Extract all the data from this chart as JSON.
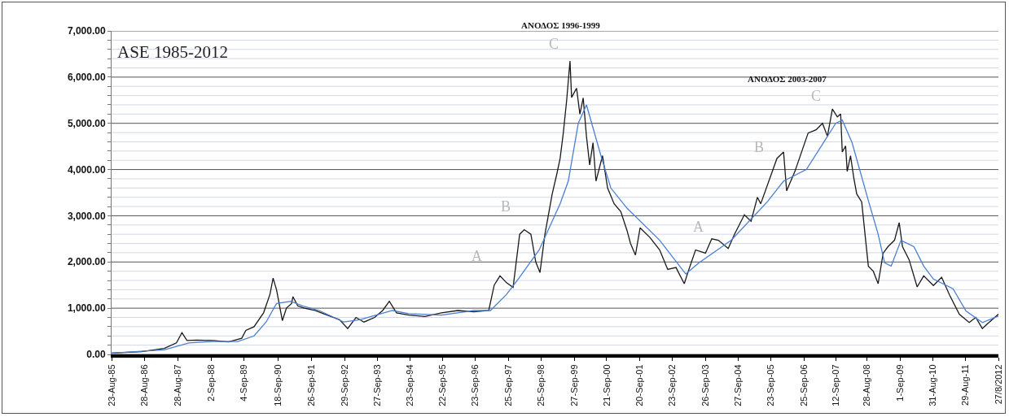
{
  "chart_data": {
    "type": "line",
    "title": "ASE 1985-2012",
    "series": [
      {
        "color": "#1a1a1a",
        "x": [
          "1985-08-23",
          "1986-07-20",
          "1987-04-01",
          "1987-08-15",
          "1987-10-15",
          "1987-12-10",
          "1988-04-01",
          "1988-09-25",
          "1989-03-15",
          "1989-08-10",
          "1989-09-25",
          "1989-12-25",
          "1990-04-10",
          "1990-06-20",
          "1990-07-25",
          "1990-09-01",
          "1990-10-10",
          "1990-11-05",
          "1990-12-20",
          "1991-02-15",
          "1991-03-03",
          "1991-04-25",
          "1991-07-08",
          "1991-11-03",
          "1992-03-18",
          "1992-08-02",
          "1992-11-01",
          "1993-02-01",
          "1993-05-01",
          "1993-08-27",
          "1993-11-25",
          "1994-02-07",
          "1994-04-28",
          "1994-09-12",
          "1995-03-10",
          "1995-09-10",
          "1996-03-10",
          "1996-09-06",
          "1997-02-17",
          "1997-04-19",
          "1997-06-22",
          "1997-09-03",
          "1997-11-15",
          "1998-01-27",
          "1998-03-19",
          "1998-06-01",
          "1998-07-25",
          "1998-09-10",
          "1998-11-04",
          "1999-01-24",
          "1999-03-16",
          "1999-04-22",
          "1999-05-28",
          "1999-07-04",
          "1999-08-10",
          "1999-08-28",
          "1999-10-22",
          "1999-11-28",
          "2000-01-04",
          "2000-02-09",
          "2000-03-16",
          "2000-04-22",
          "2000-05-25",
          "2000-08-06",
          "2000-10-01",
          "2000-12-13",
          "2001-02-25",
          "2001-05-07",
          "2001-06-13",
          "2001-08-07",
          "2001-09-28",
          "2002-01-15",
          "2002-05-04",
          "2002-08-01",
          "2002-11-01",
          "2003-02-01",
          "2003-03-25",
          "2003-06-07",
          "2003-09-25",
          "2003-12-04",
          "2004-02-16",
          "2004-06-04",
          "2004-08-13",
          "2004-12-01",
          "2005-02-13",
          "2005-04-25",
          "2005-06-01",
          "2005-11-28",
          "2006-02-10",
          "2006-03-16",
          "2006-06-16",
          "2006-11-10",
          "2007-02-07",
          "2007-04-19",
          "2007-06-13",
          "2007-08-07",
          "2007-10-01",
          "2007-11-07",
          "2007-11-25",
          "2008-01-01",
          "2008-01-19",
          "2008-02-25",
          "2008-04-01",
          "2008-05-04",
          "2008-06-28",
          "2008-08-04",
          "2008-09-10",
          "2008-11-04",
          "2008-12-28",
          "2009-02-22",
          "2009-04-16",
          "2009-06-28",
          "2009-08-19",
          "2009-09-25",
          "2009-12-07",
          "2010-03-07",
          "2010-05-19",
          "2010-09-04",
          "2010-12-04",
          "2011-03-04",
          "2011-06-19",
          "2011-10-07",
          "2011-12-19",
          "2012-03-01",
          "2012-05-13",
          "2012-08-27"
        ],
        "values": [
          30,
          60,
          130,
          250,
          470,
          300,
          310,
          300,
          270,
          350,
          520,
          600,
          900,
          1300,
          1650,
          1400,
          1000,
          730,
          1000,
          1100,
          1250,
          1050,
          1000,
          950,
          850,
          750,
          560,
          800,
          700,
          800,
          950,
          1150,
          900,
          850,
          820,
          900,
          950,
          920,
          950,
          1500,
          1700,
          1550,
          1450,
          2600,
          2700,
          2600,
          2000,
          1770,
          2600,
          3470,
          3900,
          4240,
          4800,
          5500,
          6350,
          5560,
          5760,
          5200,
          5550,
          4720,
          4100,
          4580,
          3750,
          4300,
          3600,
          3260,
          3090,
          2670,
          2400,
          2150,
          2740,
          2530,
          2260,
          1840,
          1880,
          1530,
          1840,
          2260,
          2190,
          2500,
          2470,
          2290,
          2600,
          3020,
          2880,
          3400,
          3260,
          4240,
          4380,
          3540,
          3960,
          4790,
          4860,
          5000,
          4720,
          5310,
          5140,
          5200,
          4380,
          4510,
          3960,
          4300,
          3820,
          3470,
          3300,
          2600,
          1910,
          1800,
          1530,
          2190,
          2330,
          2470,
          2850,
          2330,
          2050,
          1460,
          1700,
          1490,
          1670,
          1280,
          870,
          690,
          800,
          560,
          690,
          870
        ]
      },
      {
        "color": "#4a7fd0",
        "x": [
          "1985-08-23",
          "1987-04-01",
          "1988-01-01",
          "1988-09-25",
          "1989-06-28",
          "1989-12-25",
          "1990-05-08",
          "1990-09-01",
          "1991-02-07",
          "1991-06-19",
          "1991-12-19",
          "1992-09-16",
          "1993-03-16",
          "1993-09-13",
          "1994-03-13",
          "1994-09-12",
          "1995-09-10",
          "1996-09-06",
          "1997-03-07",
          "1997-09-03",
          "1998-01-19",
          "1998-09-01",
          "1999-04-22",
          "1999-07-22",
          "1999-11-10",
          "2000-02-09",
          "2000-07-19",
          "2000-11-06",
          "2001-05-07",
          "2002-05-04",
          "2003-02-18",
          "2003-07-12",
          "2004-07-08",
          "2005-08-12",
          "2006-02-10",
          "2006-10-22",
          "2007-09-13",
          "2007-11-25",
          "2008-03-13",
          "2008-09-10",
          "2008-12-28",
          "2009-03-10",
          "2009-05-22",
          "2009-09-08",
          "2010-01-30",
          "2010-05-19",
          "2010-09-04",
          "2011-04-10",
          "2011-09-01",
          "2012-03-01",
          "2012-08-27"
        ],
        "values": [
          30,
          100,
          250,
          280,
          280,
          400,
          700,
          1100,
          1150,
          1050,
          950,
          700,
          750,
          850,
          950,
          880,
          850,
          950,
          950,
          1300,
          1650,
          2260,
          3260,
          3750,
          5000,
          5400,
          4300,
          3600,
          3160,
          2470,
          1740,
          1980,
          2470,
          3300,
          3750,
          4000,
          5000,
          5070,
          4580,
          3330,
          2600,
          1980,
          1910,
          2470,
          2330,
          1910,
          1630,
          1420,
          940,
          690,
          830
        ]
      }
    ],
    "xlim": [
      "1985-08-23",
      "2012-08-27"
    ],
    "xticks": [
      {
        "value": "1985-08-23",
        "label": "23-Aug-85"
      },
      {
        "value": "1986-08-28",
        "label": "28-Aug-86"
      },
      {
        "value": "1987-08-28",
        "label": "28-Aug-87"
      },
      {
        "value": "1988-09-02",
        "label": "2-Sep-88"
      },
      {
        "value": "1989-09-04",
        "label": "4-Sep-89"
      },
      {
        "value": "1990-09-18",
        "label": "18-Sep-90"
      },
      {
        "value": "1991-09-26",
        "label": "26-Sep-91"
      },
      {
        "value": "1992-09-29",
        "label": "29-Sep-92"
      },
      {
        "value": "1993-09-27",
        "label": "27-Sep-93"
      },
      {
        "value": "1994-09-23",
        "label": "23-Sep-94"
      },
      {
        "value": "1995-09-22",
        "label": "22-Sep-95"
      },
      {
        "value": "1996-09-23",
        "label": "23-Sep-96"
      },
      {
        "value": "1997-09-25",
        "label": "25-Sep-97"
      },
      {
        "value": "1998-09-25",
        "label": "25-Sep-98"
      },
      {
        "value": "1999-09-27",
        "label": "27-Sep-99"
      },
      {
        "value": "2000-09-21",
        "label": "21-Sep-00"
      },
      {
        "value": "2001-09-20",
        "label": "20-Sep-01"
      },
      {
        "value": "2002-09-23",
        "label": "23-Sep-02"
      },
      {
        "value": "2003-09-26",
        "label": "26-Sep-03"
      },
      {
        "value": "2004-09-27",
        "label": "27-Sep-04"
      },
      {
        "value": "2005-09-23",
        "label": "23-Sep-05"
      },
      {
        "value": "2006-09-25",
        "label": "25-Sep-06"
      },
      {
        "value": "2007-09-12",
        "label": "12-Sep-07"
      },
      {
        "value": "2008-08-28",
        "label": "28-Aug-08"
      },
      {
        "value": "2009-09-01",
        "label": "1-Sep-09"
      },
      {
        "value": "2010-08-31",
        "label": "31-Aug-10"
      },
      {
        "value": "2011-08-29",
        "label": "29-Aug-11"
      },
      {
        "value": "2012-08-27",
        "label": "27/8/2012"
      }
    ],
    "ylim": [
      0,
      7000
    ],
    "yticks": [
      {
        "value": 0,
        "label": "0.00"
      },
      {
        "value": 200,
        "label": null
      },
      {
        "value": 400,
        "label": null
      },
      {
        "value": 600,
        "label": null
      },
      {
        "value": 800,
        "label": null
      },
      {
        "value": 1000,
        "label": "1,000.00"
      },
      {
        "value": 1200,
        "label": null
      },
      {
        "value": 1400,
        "label": null
      },
      {
        "value": 1600,
        "label": null
      },
      {
        "value": 1800,
        "label": null
      },
      {
        "value": 2000,
        "label": "2,000.00"
      },
      {
        "value": 2200,
        "label": null
      },
      {
        "value": 2400,
        "label": null
      },
      {
        "value": 2600,
        "label": null
      },
      {
        "value": 2800,
        "label": null
      },
      {
        "value": 3000,
        "label": "3,000.00"
      },
      {
        "value": 3200,
        "label": null
      },
      {
        "value": 3400,
        "label": null
      },
      {
        "value": 3600,
        "label": null
      },
      {
        "value": 3800,
        "label": null
      },
      {
        "value": 4000,
        "label": "4,000.00"
      },
      {
        "value": 4200,
        "label": null
      },
      {
        "value": 4400,
        "label": null
      },
      {
        "value": 4600,
        "label": null
      },
      {
        "value": 4800,
        "label": null
      },
      {
        "value": 5000,
        "label": "5,000.00"
      },
      {
        "value": 5200,
        "label": null
      },
      {
        "value": 5400,
        "label": null
      },
      {
        "value": 5600,
        "label": null
      },
      {
        "value": 5800,
        "label": null
      },
      {
        "value": 6000,
        "label": "6,000.00"
      },
      {
        "value": 6200,
        "label": null
      },
      {
        "value": 6400,
        "label": null
      },
      {
        "value": 6600,
        "label": null
      },
      {
        "value": 6800,
        "label": null
      },
      {
        "value": 7000,
        "label": "7,000.00"
      }
    ],
    "grid": "y",
    "annotations": [
      "ΑΝΟΔΟΣ 1996-1999",
      "ΑΝΟΔΟΣ 2003-2007",
      "A",
      "B",
      "C",
      "A",
      "B",
      "C"
    ]
  }
}
